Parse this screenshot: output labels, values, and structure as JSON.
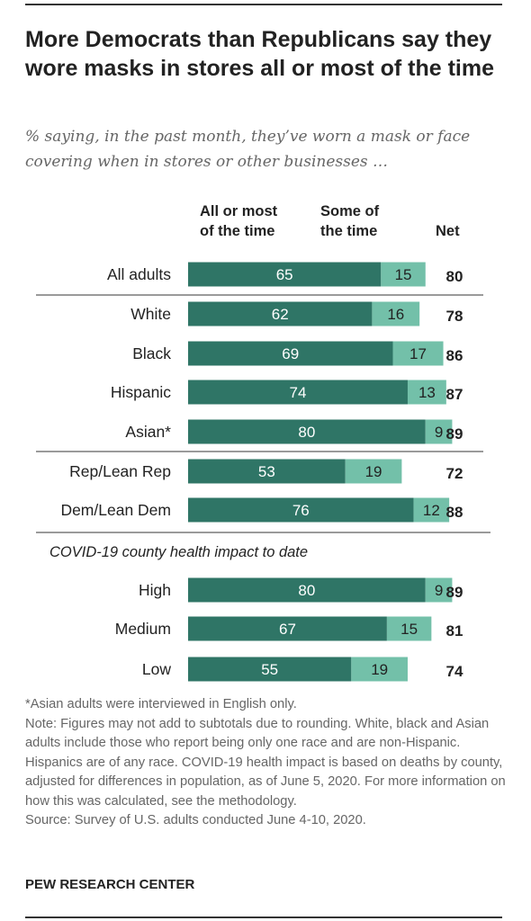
{
  "title": "More Democrats than Republicans say they wore masks in stores all or most of the time",
  "subtitle": "% saying, in the past month, they’ve worn a mask or face covering when in stores or other businesses …",
  "chart_data": {
    "type": "bar",
    "stacked": true,
    "orientation": "horizontal",
    "column_headers": {
      "series1": [
        "All or most",
        "of the time"
      ],
      "series2": [
        "Some of",
        "the time"
      ],
      "net": "Net"
    },
    "colors": {
      "series1": "#2f7566",
      "series2": "#73c0a9"
    },
    "group_header": "COVID-19 county health impact to date",
    "categories": [
      "All adults",
      "White",
      "Black",
      "Hispanic",
      "Asian*",
      "Rep/Lean Rep",
      "Dem/Lean Dem",
      "High",
      "Medium",
      "Low"
    ],
    "series": [
      {
        "name": "All or most of the time",
        "values": [
          65,
          62,
          69,
          74,
          80,
          53,
          76,
          80,
          67,
          55
        ]
      },
      {
        "name": "Some of the time",
        "values": [
          15,
          16,
          17,
          13,
          9,
          19,
          12,
          9,
          15,
          19
        ]
      }
    ],
    "net": [
      80,
      78,
      86,
      87,
      89,
      72,
      88,
      89,
      81,
      74
    ]
  },
  "notes": {
    "asterisk": "*Asian adults were interviewed in English only.",
    "note": "Note: Figures may not add to subtotals due to rounding. White, black and Asian adults include those who report being only one race and are non-Hispanic. Hispanics are of any race. COVID-19 health impact is based on deaths by county, adjusted for differences in population, as of June 5, 2020. For more information on how this was calculated, see the methodology.",
    "source": "Source: Survey of U.S. adults conducted June 4-10, 2020."
  },
  "footer": "PEW RESEARCH CENTER"
}
